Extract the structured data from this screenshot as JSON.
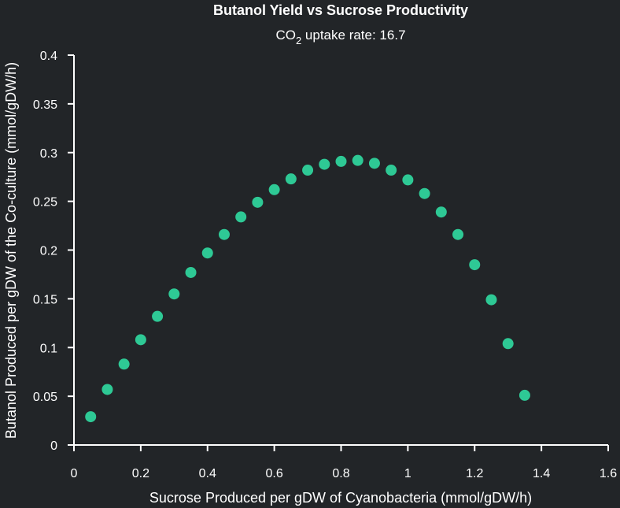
{
  "chart_data": {
    "type": "scatter",
    "title": "Butanol Yield vs Sucrose Productivity",
    "subtitle": {
      "prefix": "CO",
      "subscript": "2",
      "suffix": " uptake rate: 16.7"
    },
    "xlabel": "Sucrose Produced per gDW of Cyanobacteria (mmol/gDW/h)",
    "ylabel": "Butanol Produced per gDW of the Co-culture (mmol/gDW/h)",
    "xlim": [
      0,
      1.6
    ],
    "ylim": [
      0,
      0.4
    ],
    "xticks": [
      "0",
      "0.2",
      "0.4",
      "0.6",
      "0.8",
      "1",
      "1.2",
      "1.4",
      "1.6"
    ],
    "yticks": [
      "0",
      "0.05",
      "0.1",
      "0.15",
      "0.2",
      "0.25",
      "0.3",
      "0.35",
      "0.4"
    ],
    "grid": false,
    "marker_color": "#2ec995",
    "series": [
      {
        "x": [
          0.05,
          0.1,
          0.15,
          0.2,
          0.25,
          0.3,
          0.35,
          0.4,
          0.45,
          0.5,
          0.55,
          0.6,
          0.65,
          0.7,
          0.75,
          0.8,
          0.85,
          0.9,
          0.95,
          1.0,
          1.05,
          1.1,
          1.15,
          1.2,
          1.25,
          1.3,
          1.35
        ],
        "y": [
          0.029,
          0.057,
          0.083,
          0.108,
          0.132,
          0.155,
          0.177,
          0.197,
          0.216,
          0.234,
          0.249,
          0.262,
          0.273,
          0.282,
          0.288,
          0.291,
          0.292,
          0.289,
          0.282,
          0.272,
          0.258,
          0.239,
          0.216,
          0.185,
          0.149,
          0.104,
          0.051
        ]
      }
    ]
  }
}
